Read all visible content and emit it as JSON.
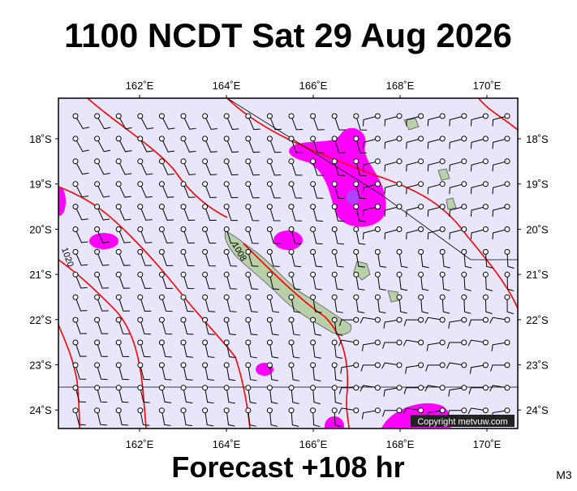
{
  "header": {
    "title": "1100 NCDT Sat 29 Aug 2026"
  },
  "map": {
    "lon_ticks": [
      {
        "value": 162,
        "label": "162˚E"
      },
      {
        "value": 164,
        "label": "164˚E"
      },
      {
        "value": 166,
        "label": "166˚E"
      },
      {
        "value": 168,
        "label": "168˚E"
      },
      {
        "value": 170,
        "label": "170˚E"
      }
    ],
    "lat_ticks": [
      {
        "value": -18,
        "label": "18˚S"
      },
      {
        "value": -19,
        "label": "19˚S"
      },
      {
        "value": -20,
        "label": "20˚S"
      },
      {
        "value": -21,
        "label": "21˚S"
      },
      {
        "value": -22,
        "label": "22˚S"
      },
      {
        "value": -23,
        "label": "23˚S"
      },
      {
        "value": -24,
        "label": "24˚S"
      }
    ],
    "isobar_labels": [
      "1020",
      "1008"
    ],
    "copyright": "Copyright metvuw.com"
  },
  "footer": {
    "forecast": "Forecast +108 hr",
    "model": "M3"
  }
}
